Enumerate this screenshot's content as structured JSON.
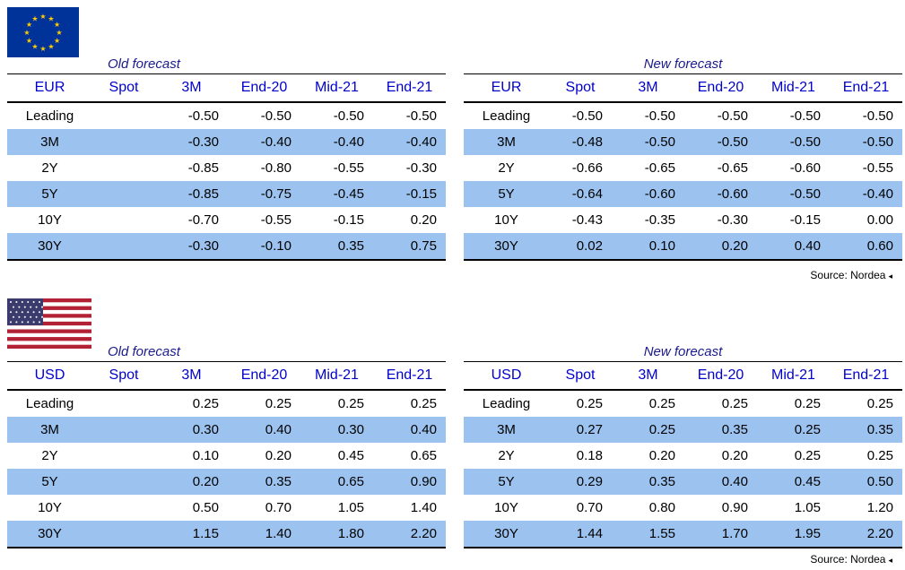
{
  "eur": {
    "flag_icon": "eu-flag-icon",
    "old": {
      "caption": "Old forecast",
      "headers": [
        "EUR",
        "Spot",
        "3M",
        "End-20",
        "Mid-21",
        "End-21"
      ],
      "rows": [
        [
          "Leading",
          "",
          "-0.50",
          "-0.50",
          "-0.50",
          "-0.50"
        ],
        [
          "3M",
          "",
          "-0.30",
          "-0.40",
          "-0.40",
          "-0.40"
        ],
        [
          "2Y",
          "",
          "-0.85",
          "-0.80",
          "-0.55",
          "-0.30"
        ],
        [
          "5Y",
          "",
          "-0.85",
          "-0.75",
          "-0.45",
          "-0.15"
        ],
        [
          "10Y",
          "",
          "-0.70",
          "-0.55",
          "-0.15",
          "0.20"
        ],
        [
          "30Y",
          "",
          "-0.30",
          "-0.10",
          "0.35",
          "0.75"
        ]
      ]
    },
    "new": {
      "caption": "New forecast",
      "headers": [
        "EUR",
        "Spot",
        "3M",
        "End-20",
        "Mid-21",
        "End-21"
      ],
      "rows": [
        [
          "Leading",
          "-0.50",
          "-0.50",
          "-0.50",
          "-0.50",
          "-0.50"
        ],
        [
          "3M",
          "-0.48",
          "-0.50",
          "-0.50",
          "-0.50",
          "-0.50"
        ],
        [
          "2Y",
          "-0.66",
          "-0.65",
          "-0.65",
          "-0.60",
          "-0.55"
        ],
        [
          "5Y",
          "-0.64",
          "-0.60",
          "-0.60",
          "-0.50",
          "-0.40"
        ],
        [
          "10Y",
          "-0.43",
          "-0.35",
          "-0.30",
          "-0.15",
          "0.00"
        ],
        [
          "30Y",
          "0.02",
          "0.10",
          "0.20",
          "0.40",
          "0.60"
        ]
      ]
    },
    "source": "Source: Nordea"
  },
  "usd": {
    "flag_icon": "us-flag-icon",
    "old": {
      "caption": "Old forecast",
      "headers": [
        "USD",
        "Spot",
        "3M",
        "End-20",
        "Mid-21",
        "End-21"
      ],
      "rows": [
        [
          "Leading",
          "",
          "0.25",
          "0.25",
          "0.25",
          "0.25"
        ],
        [
          "3M",
          "",
          "0.30",
          "0.40",
          "0.30",
          "0.40"
        ],
        [
          "2Y",
          "",
          "0.10",
          "0.20",
          "0.45",
          "0.65"
        ],
        [
          "5Y",
          "",
          "0.20",
          "0.35",
          "0.65",
          "0.90"
        ],
        [
          "10Y",
          "",
          "0.50",
          "0.70",
          "1.05",
          "1.40"
        ],
        [
          "30Y",
          "",
          "1.15",
          "1.40",
          "1.80",
          "2.20"
        ]
      ]
    },
    "new": {
      "caption": "New forecast",
      "headers": [
        "USD",
        "Spot",
        "3M",
        "End-20",
        "Mid-21",
        "End-21"
      ],
      "rows": [
        [
          "Leading",
          "0.25",
          "0.25",
          "0.25",
          "0.25",
          "0.25"
        ],
        [
          "3M",
          "0.27",
          "0.25",
          "0.35",
          "0.25",
          "0.35"
        ],
        [
          "2Y",
          "0.18",
          "0.20",
          "0.20",
          "0.25",
          "0.25"
        ],
        [
          "5Y",
          "0.29",
          "0.35",
          "0.40",
          "0.45",
          "0.50"
        ],
        [
          "10Y",
          "0.70",
          "0.80",
          "0.90",
          "1.05",
          "1.20"
        ],
        [
          "30Y",
          "1.44",
          "1.55",
          "1.70",
          "1.95",
          "2.20"
        ]
      ]
    },
    "source": "Source: Nordea"
  },
  "colors": {
    "row_shade": "#9cc3f0",
    "header_text": "#0000cc",
    "caption_text": "#1a1a8c",
    "eu_blue": "#003399",
    "eu_star": "#ffcc00",
    "us_red": "#b22234",
    "us_blue": "#3c3b6e"
  }
}
